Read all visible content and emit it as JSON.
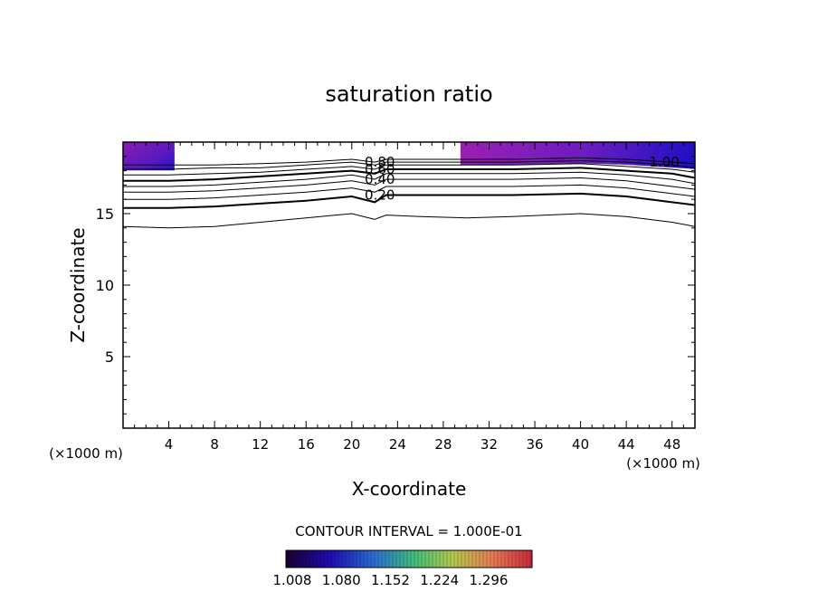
{
  "chart_data": {
    "type": "contour",
    "title": "saturation ratio",
    "xlabel": "X-coordinate",
    "ylabel": "Z-coordinate",
    "x_unit_left": "(×1000 m)",
    "x_unit_right": "(×1000 m)",
    "xlim": [
      0,
      50
    ],
    "ylim": [
      0,
      20
    ],
    "x_ticks": [
      4,
      8,
      12,
      16,
      20,
      24,
      28,
      32,
      36,
      40,
      44,
      48
    ],
    "y_ticks": [
      5,
      10,
      15
    ],
    "contour_interval_label": "CONTOUR INTERVAL = 1.000E-01",
    "contour_x": [
      0,
      4,
      8,
      12,
      16,
      20,
      22,
      23,
      26,
      30,
      34,
      40,
      44,
      48,
      50
    ],
    "contours": [
      {
        "level": 0.1,
        "z": [
          14.1,
          14.0,
          14.1,
          14.4,
          14.7,
          15.0,
          14.6,
          14.9,
          14.8,
          14.7,
          14.8,
          15.0,
          14.8,
          14.4,
          14.1
        ]
      },
      {
        "level": 0.2,
        "label": "0.20",
        "z": [
          15.4,
          15.4,
          15.5,
          15.7,
          15.9,
          16.2,
          15.8,
          16.3,
          16.3,
          16.3,
          16.3,
          16.4,
          16.2,
          15.8,
          15.6
        ]
      },
      {
        "level": 0.3,
        "z": [
          16.0,
          16.0,
          16.1,
          16.3,
          16.5,
          16.8,
          16.5,
          16.9,
          16.9,
          16.9,
          16.9,
          17.0,
          16.8,
          16.4,
          16.2
        ]
      },
      {
        "level": 0.4,
        "label": "0.40",
        "z": [
          16.5,
          16.5,
          16.6,
          16.8,
          17.0,
          17.3,
          17.0,
          17.4,
          17.4,
          17.4,
          17.4,
          17.5,
          17.3,
          16.9,
          16.7
        ]
      },
      {
        "level": 0.5,
        "z": [
          16.9,
          16.9,
          17.0,
          17.2,
          17.4,
          17.7,
          17.4,
          17.8,
          17.8,
          17.8,
          17.8,
          17.9,
          17.7,
          17.4,
          17.1
        ]
      },
      {
        "level": 0.6,
        "label": "0.60",
        "z": [
          17.3,
          17.3,
          17.4,
          17.6,
          17.8,
          18.0,
          17.8,
          18.1,
          18.1,
          18.1,
          18.1,
          18.2,
          18.0,
          17.8,
          17.5
        ]
      },
      {
        "level": 0.7,
        "z": [
          17.7,
          17.7,
          17.8,
          17.9,
          18.1,
          18.3,
          18.1,
          18.4,
          18.4,
          18.4,
          18.4,
          18.5,
          18.3,
          18.1,
          17.9
        ]
      },
      {
        "level": 0.8,
        "label": "0.80",
        "z": [
          18.1,
          18.1,
          18.2,
          18.2,
          18.4,
          18.6,
          18.4,
          18.6,
          18.6,
          18.6,
          18.6,
          18.7,
          18.6,
          18.4,
          18.2
        ]
      },
      {
        "level": 0.9,
        "z": [
          18.4,
          18.4,
          18.4,
          18.5,
          18.6,
          18.8,
          18.6,
          18.8,
          18.8,
          18.8,
          18.8,
          18.9,
          18.8,
          18.6,
          18.5
        ]
      }
    ],
    "extra_labels": [
      {
        "text": "1.00",
        "x": 46,
        "z": 18.6
      }
    ],
    "shaded_regions": [
      {
        "x": [
          0,
          4.5
        ],
        "color_range": [
          1.008,
          1.08
        ]
      },
      {
        "x": [
          29.5,
          50
        ],
        "color_range": [
          1.008,
          1.08
        ]
      }
    ],
    "colorbar": {
      "ticks": [
        "1.008",
        "1.080",
        "1.152",
        "1.224",
        "1.296"
      ],
      "colors": [
        "#1a002e",
        "#1f0bb5",
        "#2a6fd0",
        "#3fbf7a",
        "#b7c94a",
        "#e87a55",
        "#c92a3a"
      ]
    },
    "grid": false,
    "legend": "colorbar-bottom"
  }
}
